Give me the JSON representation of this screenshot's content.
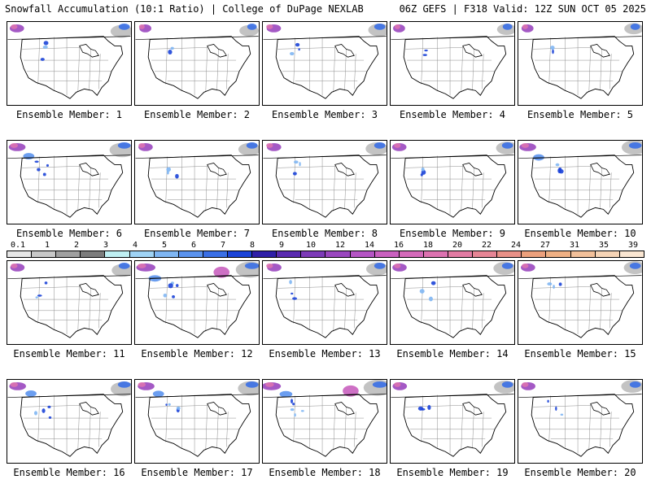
{
  "header": {
    "left": "Snowfall Accumulation (10:1 Ratio) | College of DuPage NEXLAB",
    "right": "06Z GEFS | F318 Valid: 12Z SUN OCT 05 2025"
  },
  "panel_label_prefix": "Ensemble Member: ",
  "members": [
    {
      "number": "1",
      "intensity": 2
    },
    {
      "number": "2",
      "intensity": 1
    },
    {
      "number": "3",
      "intensity": 2
    },
    {
      "number": "4",
      "intensity": 1
    },
    {
      "number": "5",
      "intensity": 1
    },
    {
      "number": "6",
      "intensity": 3
    },
    {
      "number": "7",
      "intensity": 2
    },
    {
      "number": "8",
      "intensity": 2
    },
    {
      "number": "9",
      "intensity": 2
    },
    {
      "number": "10",
      "intensity": 3
    },
    {
      "number": "11",
      "intensity": 2
    },
    {
      "number": "12",
      "intensity": 4
    },
    {
      "number": "13",
      "intensity": 2
    },
    {
      "number": "14",
      "intensity": 2
    },
    {
      "number": "15",
      "intensity": 2
    },
    {
      "number": "16",
      "intensity": 3
    },
    {
      "number": "17",
      "intensity": 3
    },
    {
      "number": "18",
      "intensity": 4
    },
    {
      "number": "19",
      "intensity": 2
    },
    {
      "number": "20",
      "intensity": 2
    }
  ],
  "colorbar": {
    "labels": [
      "0.1",
      "1",
      "2",
      "3",
      "4",
      "5",
      "6",
      "7",
      "8",
      "9",
      "10",
      "12",
      "14",
      "16",
      "18",
      "20",
      "22",
      "24",
      "27",
      "31",
      "35",
      "39"
    ],
    "colors": [
      "#e6e6e6",
      "#c8c8c8",
      "#a0a0a0",
      "#7c7c7c",
      "#bfeff2",
      "#9fd3f5",
      "#7fb6f3",
      "#5b93ee",
      "#3a6fe6",
      "#1c44d8",
      "#2f1fa8",
      "#5a2bb0",
      "#7d3bb8",
      "#9a47bf",
      "#b555c4",
      "#c960bf",
      "#d46aba",
      "#dc72b0",
      "#e27ba3",
      "#e68595",
      "#e99087",
      "#eca07c",
      "#efb084",
      "#f2c09a",
      "#f6d4b6",
      "#fae6d2"
    ]
  }
}
